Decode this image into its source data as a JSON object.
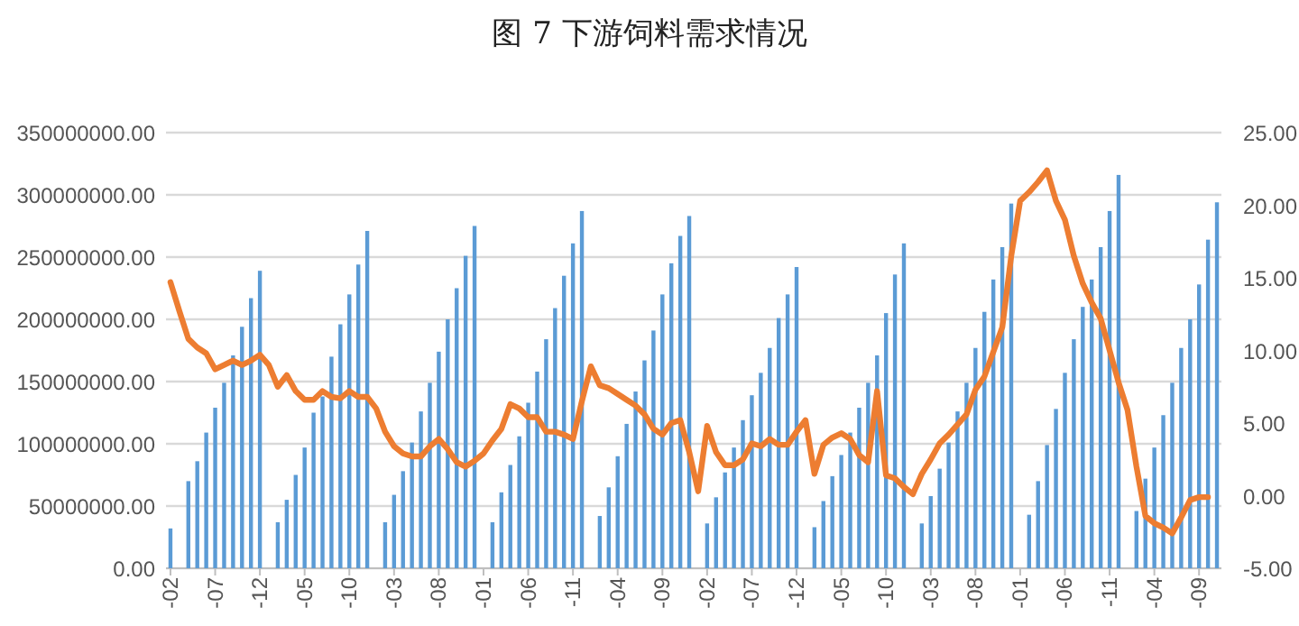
{
  "chart_data": {
    "type": "bar",
    "title": "图 7 下游饲料需求情况",
    "categories": [
      "-02",
      null,
      null,
      null,
      null,
      "-07",
      null,
      null,
      null,
      null,
      "-12",
      null,
      null,
      null,
      null,
      "-05",
      null,
      null,
      null,
      null,
      "-10",
      null,
      null,
      null,
      null,
      "-03",
      null,
      null,
      null,
      null,
      "-08",
      null,
      null,
      null,
      null,
      "-01",
      null,
      null,
      null,
      null,
      "-06",
      null,
      null,
      null,
      null,
      "-11",
      null,
      null,
      null,
      null,
      "-04",
      null,
      null,
      null,
      null,
      "-09",
      null,
      null,
      null,
      null,
      "-02",
      null,
      null,
      null,
      null,
      "-07",
      null,
      null,
      null,
      null,
      "-12",
      null,
      null,
      null,
      null,
      "-05",
      null,
      null,
      null,
      null,
      "-10",
      null,
      null,
      null,
      null,
      "-03",
      null,
      null,
      null,
      null,
      "-08",
      null,
      null,
      null,
      null,
      "-01",
      null,
      null,
      null,
      null,
      "-06",
      null,
      null,
      null,
      null,
      "-11",
      null,
      null,
      null,
      null,
      "-04",
      null,
      null,
      null,
      null,
      "-09",
      null,
      null
    ],
    "series": [
      {
        "color": "#5b9bd5",
        "values": [
          32000000,
          null,
          70000000,
          86000000,
          109000000,
          129000000,
          149000000,
          171000000,
          194000000,
          217000000,
          239000000,
          null,
          37000000,
          55000000,
          75000000,
          97000000,
          125000000,
          138000000,
          170000000,
          196000000,
          220000000,
          244000000,
          271000000,
          null,
          37000000,
          59000000,
          78000000,
          101000000,
          126000000,
          149000000,
          174000000,
          200000000,
          225000000,
          251000000,
          275000000,
          null,
          37000000,
          61000000,
          83000000,
          106000000,
          133000000,
          158000000,
          184000000,
          209000000,
          235000000,
          261000000,
          287000000,
          null,
          42000000,
          65000000,
          90000000,
          116000000,
          142000000,
          167000000,
          191000000,
          220000000,
          245000000,
          267000000,
          283000000,
          null,
          36000000,
          57000000,
          77000000,
          97000000,
          119000000,
          139000000,
          157000000,
          177000000,
          201000000,
          220000000,
          242000000,
          null,
          33000000,
          54000000,
          74000000,
          91000000,
          109000000,
          129000000,
          149000000,
          171000000,
          205000000,
          236000000,
          261000000,
          null,
          36000000,
          58000000,
          80000000,
          101000000,
          126000000,
          149000000,
          177000000,
          206000000,
          232000000,
          258000000,
          293000000,
          null,
          43000000,
          70000000,
          99000000,
          128000000,
          157000000,
          184000000,
          210000000,
          232000000,
          258000000,
          287000000,
          316000000,
          null,
          46000000,
          72000000,
          97000000,
          123000000,
          149000000,
          177000000,
          200000000,
          228000000,
          264000000,
          294000000
        ]
      },
      {
        "type": "line",
        "axis": "y2",
        "color": "#ed7d31",
        "values": [
          14.7,
          12.7,
          10.8,
          10.2,
          9.8,
          8.7,
          9.0,
          9.3,
          9.0,
          9.3,
          9.7,
          9.0,
          7.5,
          8.3,
          7.2,
          6.6,
          6.6,
          7.2,
          6.8,
          6.7,
          7.2,
          6.8,
          6.8,
          6.0,
          4.4,
          3.4,
          2.9,
          2.7,
          2.7,
          3.4,
          3.9,
          3.2,
          2.3,
          2.0,
          2.4,
          2.9,
          3.8,
          4.6,
          6.3,
          6.0,
          5.4,
          5.4,
          4.4,
          4.4,
          4.2,
          3.9,
          6.5,
          8.9,
          7.6,
          7.4,
          7.0,
          6.6,
          6.2,
          5.6,
          4.6,
          4.2,
          5.0,
          5.2,
          3.0,
          0.3,
          4.8,
          3.0,
          2.1,
          2.1,
          2.5,
          3.6,
          3.4,
          3.9,
          3.5,
          3.5,
          4.4,
          5.2,
          1.5,
          3.5,
          4.0,
          4.3,
          3.9,
          2.8,
          2.3,
          7.2,
          1.4,
          1.2,
          0.6,
          0.1,
          1.5,
          2.5,
          3.6,
          4.2,
          4.9,
          5.6,
          7.3,
          8.2,
          9.9,
          11.6,
          16.5,
          20.3,
          20.9,
          21.6,
          22.4,
          20.3,
          19.0,
          16.5,
          14.6,
          13.3,
          12.2,
          10.0,
          7.8,
          5.9,
          2.0,
          -1.4,
          -1.9,
          -2.2,
          -2.6,
          -1.5,
          -0.3,
          -0.1,
          -0.1,
          null
        ]
      }
    ],
    "ylim": [
      0,
      350000000
    ],
    "yticks": [
      {
        "value": 0,
        "label": "0.00"
      },
      {
        "value": 50000000,
        "label": "50000000.00"
      },
      {
        "value": 100000000,
        "label": "100000000.00"
      },
      {
        "value": 150000000,
        "label": "150000000.00"
      },
      {
        "value": 200000000,
        "label": "200000000.00"
      },
      {
        "value": 250000000,
        "label": "250000000.00"
      },
      {
        "value": 300000000,
        "label": "300000000.00"
      },
      {
        "value": 350000000,
        "label": "350000000.00"
      }
    ],
    "y2lim": [
      -5,
      25
    ],
    "y2ticks": [
      {
        "value": -5,
        "label": "-5.00"
      },
      {
        "value": 0,
        "label": "0.00"
      },
      {
        "value": 5,
        "label": "5.00"
      },
      {
        "value": 10,
        "label": "10.00"
      },
      {
        "value": 15,
        "label": "15.00"
      },
      {
        "value": 20,
        "label": "20.00"
      },
      {
        "value": 25,
        "label": "25.00"
      }
    ],
    "grid": "y"
  }
}
